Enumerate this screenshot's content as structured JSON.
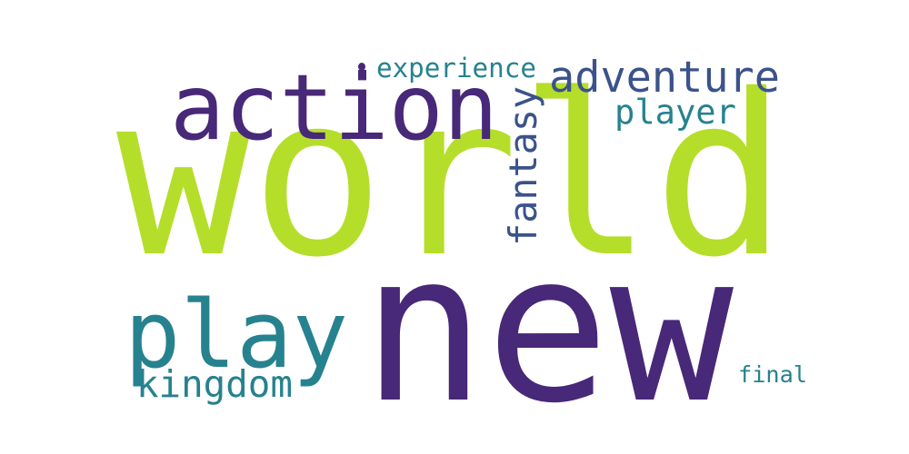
{
  "words": [
    {
      "key": "world",
      "text": "world",
      "color": "#b5de2b"
    },
    {
      "key": "new",
      "text": "new",
      "color": "#482878"
    },
    {
      "key": "action",
      "text": "action",
      "color": "#482878"
    },
    {
      "key": "play",
      "text": "play",
      "color": "#26828e"
    },
    {
      "key": "adventure",
      "text": "adventure",
      "color": "#3b528b"
    },
    {
      "key": "player",
      "text": "player",
      "color": "#26828e"
    },
    {
      "key": "fantasy",
      "text": "fantasy",
      "color": "#3b528b"
    },
    {
      "key": "kingdom",
      "text": "kingdom",
      "color": "#26828e"
    },
    {
      "key": "experience",
      "text": "experience",
      "color": "#26828e"
    },
    {
      "key": "final",
      "text": "final",
      "color": "#26828e"
    }
  ],
  "dot_color": "#482878"
}
